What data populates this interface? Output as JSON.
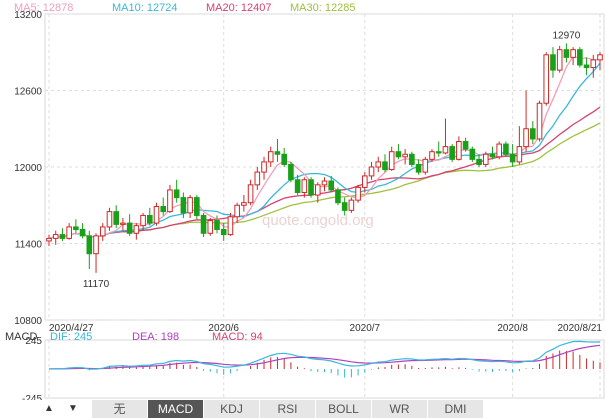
{
  "ma_legend": [
    {
      "label": "MA5: 12878",
      "color": "#f0a0b8"
    },
    {
      "label": "MA10: 12724",
      "color": "#3ab8d8"
    },
    {
      "label": "MA20: 12407",
      "color": "#d84070"
    },
    {
      "label": "MA30: 12285",
      "color": "#a0c040"
    }
  ],
  "macd_legend": {
    "title": "MACD",
    "dif": "DIF: 245",
    "dea": "DEA: 198",
    "macd": "MACD: 94"
  },
  "watermark": "quote.cngold.org",
  "tabs": [
    {
      "label": "无",
      "active": false
    },
    {
      "label": "MACD",
      "active": true
    },
    {
      "label": "KDJ",
      "active": false
    },
    {
      "label": "RSI",
      "active": false
    },
    {
      "label": "BOLL",
      "active": false
    },
    {
      "label": "WR",
      "active": false
    },
    {
      "label": "DMI",
      "active": false
    }
  ],
  "arrows": {
    "up": "▲",
    "down": "▼"
  },
  "chart_data": {
    "type": "candlestick",
    "y_ticks": [
      13200,
      12600,
      12000,
      11400,
      10800
    ],
    "ylim": [
      10800,
      13200
    ],
    "x_ticks": [
      "2020/4/27",
      "2020/6",
      "2020/7",
      "2020/8",
      "2020/8/21"
    ],
    "x_tick_index": [
      0,
      26,
      47,
      69,
      82
    ],
    "grid": true,
    "annotations": [
      {
        "text": "12970",
        "index": 77,
        "value": 12970
      },
      {
        "text": "11170",
        "index": 7,
        "value": 11170
      }
    ],
    "colors": {
      "up": "#d02828",
      "down": "#18a018",
      "ma5": "#f0a0b8",
      "ma10": "#3ab8d8",
      "ma20": "#d84070",
      "ma30": "#a0c040"
    },
    "ohlc": [
      [
        11420,
        11470,
        11380,
        11440
      ],
      [
        11440,
        11500,
        11390,
        11470
      ],
      [
        11470,
        11520,
        11420,
        11440
      ],
      [
        11440,
        11560,
        11430,
        11530
      ],
      [
        11530,
        11590,
        11480,
        11510
      ],
      [
        11510,
        11560,
        11440,
        11460
      ],
      [
        11460,
        11500,
        11200,
        11320
      ],
      [
        11320,
        11480,
        11170,
        11460
      ],
      [
        11460,
        11560,
        11420,
        11530
      ],
      [
        11530,
        11680,
        11500,
        11650
      ],
      [
        11650,
        11700,
        11520,
        11550
      ],
      [
        11550,
        11600,
        11500,
        11560
      ],
      [
        11560,
        11630,
        11460,
        11480
      ],
      [
        11480,
        11560,
        11430,
        11540
      ],
      [
        11540,
        11640,
        11500,
        11620
      ],
      [
        11620,
        11680,
        11540,
        11560
      ],
      [
        11560,
        11720,
        11540,
        11690
      ],
      [
        11690,
        11760,
        11620,
        11650
      ],
      [
        11650,
        11860,
        11640,
        11820
      ],
      [
        11820,
        11900,
        11720,
        11760
      ],
      [
        11760,
        11800,
        11600,
        11640
      ],
      [
        11640,
        11780,
        11600,
        11760
      ],
      [
        11760,
        11780,
        11590,
        11620
      ],
      [
        11620,
        11640,
        11450,
        11480
      ],
      [
        11480,
        11600,
        11460,
        11580
      ],
      [
        11580,
        11620,
        11480,
        11510
      ],
      [
        11510,
        11560,
        11420,
        11470
      ],
      [
        11470,
        11640,
        11460,
        11610
      ],
      [
        11610,
        11720,
        11560,
        11700
      ],
      [
        11700,
        11780,
        11650,
        11720
      ],
      [
        11720,
        11900,
        11700,
        11860
      ],
      [
        11860,
        12000,
        11820,
        11960
      ],
      [
        11960,
        12080,
        11900,
        12040
      ],
      [
        12040,
        12160,
        12000,
        12120
      ],
      [
        12120,
        12220,
        12040,
        12100
      ],
      [
        12100,
        12150,
        12000,
        12020
      ],
      [
        12020,
        12040,
        11880,
        11900
      ],
      [
        11900,
        11940,
        11780,
        11800
      ],
      [
        11800,
        11920,
        11760,
        11900
      ],
      [
        11900,
        11920,
        11760,
        11780
      ],
      [
        11780,
        11880,
        11720,
        11860
      ],
      [
        11860,
        11920,
        11810,
        11890
      ],
      [
        11890,
        11930,
        11800,
        11820
      ],
      [
        11820,
        11840,
        11700,
        11720
      ],
      [
        11720,
        11760,
        11620,
        11660
      ],
      [
        11660,
        11760,
        11640,
        11740
      ],
      [
        11740,
        11860,
        11720,
        11840
      ],
      [
        11840,
        11960,
        11800,
        11930
      ],
      [
        11930,
        12040,
        11900,
        12000
      ],
      [
        12000,
        12080,
        11960,
        12040
      ],
      [
        12040,
        12100,
        11960,
        11980
      ],
      [
        11980,
        12160,
        11970,
        12120
      ],
      [
        12120,
        12180,
        12060,
        12080
      ],
      [
        12080,
        12140,
        12020,
        12100
      ],
      [
        12100,
        12120,
        12000,
        12020
      ],
      [
        12020,
        12060,
        11940,
        11960
      ],
      [
        11960,
        12080,
        11940,
        12060
      ],
      [
        12060,
        12140,
        12040,
        12120
      ],
      [
        12120,
        12200,
        12080,
        12110
      ],
      [
        12110,
        12380,
        12100,
        12160
      ],
      [
        12160,
        12180,
        12040,
        12060
      ],
      [
        12060,
        12240,
        12050,
        12200
      ],
      [
        12200,
        12230,
        12120,
        12140
      ],
      [
        12140,
        12160,
        12040,
        12060
      ],
      [
        12060,
        12100,
        12000,
        12020
      ],
      [
        12020,
        12120,
        12000,
        12100
      ],
      [
        12100,
        12160,
        12060,
        12080
      ],
      [
        12080,
        12200,
        12060,
        12180
      ],
      [
        12180,
        12200,
        12080,
        12100
      ],
      [
        12100,
        12180,
        12000,
        12040
      ],
      [
        12040,
        12320,
        12020,
        12160
      ],
      [
        12160,
        12600,
        12120,
        12300
      ],
      [
        12300,
        12360,
        12180,
        12220
      ],
      [
        12220,
        12520,
        12200,
        12500
      ],
      [
        12500,
        12900,
        12480,
        12880
      ],
      [
        12880,
        12940,
        12700,
        12760
      ],
      [
        12760,
        12950,
        12740,
        12920
      ],
      [
        12920,
        12970,
        12820,
        12860
      ],
      [
        12860,
        12940,
        12800,
        12920
      ],
      [
        12920,
        12940,
        12780,
        12800
      ],
      [
        12800,
        12860,
        12720,
        12780
      ],
      [
        12780,
        12880,
        12700,
        12840
      ],
      [
        12840,
        12900,
        12760,
        12880
      ]
    ],
    "macd": {
      "ylim": [
        -245,
        245
      ],
      "y_ticks": [
        245,
        -245
      ]
    }
  }
}
